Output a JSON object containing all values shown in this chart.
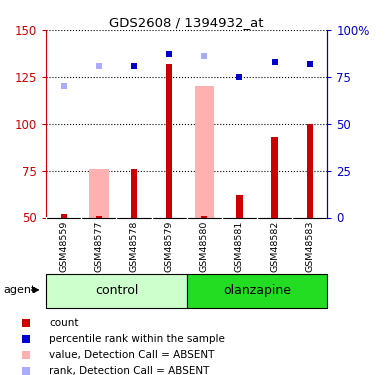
{
  "title": "GDS2608 / 1394932_at",
  "samples": [
    "GSM48559",
    "GSM48577",
    "GSM48578",
    "GSM48579",
    "GSM48580",
    "GSM48581",
    "GSM48582",
    "GSM48583"
  ],
  "red_count": [
    52,
    51,
    76,
    132,
    51,
    62,
    93,
    100
  ],
  "blue_rank": [
    null,
    null,
    81,
    87,
    null,
    75,
    83,
    82
  ],
  "pink_value_absent": [
    null,
    76,
    null,
    null,
    120,
    null,
    null,
    null
  ],
  "lightblue_rank_absent": [
    70,
    81,
    null,
    null,
    86,
    null,
    null,
    null
  ],
  "ylim": [
    50,
    150
  ],
  "y2lim": [
    0,
    100
  ],
  "yticks_left": [
    50,
    75,
    100,
    125,
    150
  ],
  "yticks_right": [
    0,
    25,
    50,
    75,
    100
  ],
  "red_color": "#cc0000",
  "blue_color": "#0000cc",
  "pink_color": "#ffb0b0",
  "lightblue_color": "#aaaaff",
  "ctrl_light": "#ccffcc",
  "ctrl_dark": "#44ee44",
  "olz_dark": "#22dd22",
  "sample_bg": "#d8d8d8",
  "legend_items": [
    {
      "label": "count",
      "color": "#cc0000"
    },
    {
      "label": "percentile rank within the sample",
      "color": "#0000cc"
    },
    {
      "label": "value, Detection Call = ABSENT",
      "color": "#ffb0b0"
    },
    {
      "label": "rank, Detection Call = ABSENT",
      "color": "#aaaaff"
    }
  ]
}
